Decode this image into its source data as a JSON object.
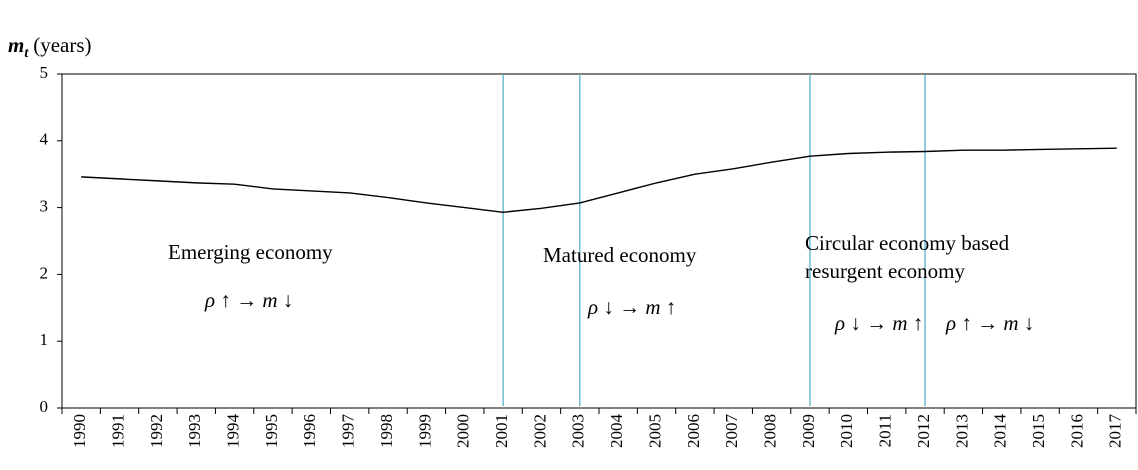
{
  "chart_data": {
    "type": "line",
    "y_label": {
      "symbol": "m",
      "subscript": "t",
      "unit": "(years)"
    },
    "categories": [
      "1990",
      "1991",
      "1992",
      "1993",
      "1994",
      "1995",
      "1996",
      "1997",
      "1998",
      "1999",
      "2000",
      "2001",
      "2002",
      "2003",
      "2004",
      "2005",
      "2006",
      "2007",
      "2008",
      "2009",
      "2010",
      "2011",
      "2012",
      "2013",
      "2014",
      "2015",
      "2016",
      "2017"
    ],
    "values": [
      3.46,
      3.43,
      3.4,
      3.37,
      3.35,
      3.28,
      3.25,
      3.22,
      3.15,
      3.07,
      3.0,
      2.93,
      2.99,
      3.07,
      3.22,
      3.37,
      3.5,
      3.58,
      3.68,
      3.77,
      3.81,
      3.83,
      3.84,
      3.86,
      3.86,
      3.87,
      3.88,
      3.89
    ],
    "color": "#000000",
    "ylim": [
      0,
      5
    ],
    "yticks": [
      0,
      1,
      2,
      3,
      4,
      5
    ],
    "grid": false,
    "dividers": [
      "2001",
      "2003",
      "2009",
      "2012"
    ],
    "divider_color": "#4bacc6",
    "annotations": [
      "Emerging economy",
      "ρ ↑ → m ↓",
      "Matured economy",
      "ρ ↓ → m ↑",
      "Circular economy based",
      "resurgent economy",
      "ρ ↓ → m ↑",
      "ρ ↑ → m ↓"
    ]
  }
}
